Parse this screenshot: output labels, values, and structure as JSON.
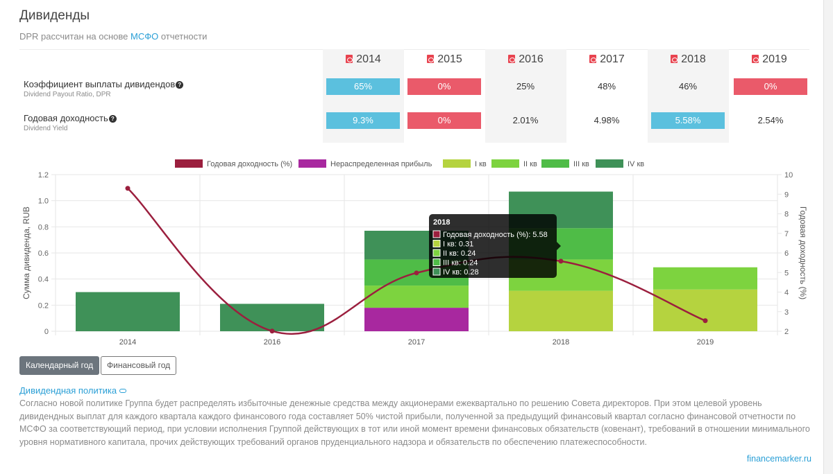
{
  "header": {
    "title": "Дивиденды",
    "subtitle_prefix": "DPR рассчитан на основе ",
    "subtitle_link": "МСФО",
    "subtitle_suffix": " отчетности"
  },
  "table": {
    "years": [
      "2014",
      "2015",
      "2016",
      "2017",
      "2018",
      "2019"
    ],
    "rows": [
      {
        "label": "Коэффициент выплаты дивидендов",
        "sublabel": "Dividend Payout Ratio, DPR",
        "cells": [
          {
            "value": "65%",
            "style": "blue"
          },
          {
            "value": "0%",
            "style": "red"
          },
          {
            "value": "25%",
            "style": "plain"
          },
          {
            "value": "48%",
            "style": "plain"
          },
          {
            "value": "46%",
            "style": "plain"
          },
          {
            "value": "0%",
            "style": "red"
          }
        ]
      },
      {
        "label": "Годовая доходность",
        "sublabel": "Dividend Yield",
        "cells": [
          {
            "value": "9.3%",
            "style": "blue"
          },
          {
            "value": "0%",
            "style": "red"
          },
          {
            "value": "2.01%",
            "style": "plain"
          },
          {
            "value": "4.98%",
            "style": "plain"
          },
          {
            "value": "5.58%",
            "style": "blue"
          },
          {
            "value": "2.54%",
            "style": "plain"
          }
        ]
      }
    ],
    "help_glyph": "?"
  },
  "colors": {
    "accent": "#2a9fd6",
    "highlight_blue": "#5bc0de",
    "highlight_red": "#ea5a6a",
    "line": "#9b1f3e",
    "retained": "#a8289f",
    "q1": "#b5d33f",
    "q2": "#7dd33f",
    "q3": "#4fbc47",
    "q4": "#3f9158"
  },
  "chart_data": {
    "type": "bar",
    "categories": [
      "2014",
      "2016",
      "2017",
      "2018",
      "2019"
    ],
    "series": [
      {
        "name": "Нераспределенная прибыль",
        "color": "#a8289f",
        "values": [
          0,
          0,
          0.18,
          0,
          0
        ]
      },
      {
        "name": "I кв",
        "color": "#b5d33f",
        "values": [
          0,
          0,
          0,
          0.31,
          0.32
        ]
      },
      {
        "name": "II кв",
        "color": "#7dd33f",
        "values": [
          0,
          0,
          0.17,
          0.24,
          0.17
        ]
      },
      {
        "name": "III кв",
        "color": "#4fbc47",
        "values": [
          0,
          0,
          0.2,
          0.24,
          0
        ]
      },
      {
        "name": "IV кв",
        "color": "#3f9158",
        "values": [
          0.3,
          0.21,
          0.22,
          0.28,
          0
        ]
      }
    ],
    "line_series": {
      "name": "Годовая доходность (%)",
      "color": "#9b1f3e",
      "values": [
        9.3,
        2.01,
        4.98,
        5.58,
        2.54
      ]
    },
    "legend": [
      "Годовая доходность (%)",
      "Нераспределенная прибыль",
      "I кв",
      "II кв",
      "III кв",
      "IV кв"
    ],
    "ylabel": "Сумма дивиденда, RUB",
    "y2label": "Годовая доходность (%)",
    "ylim": [
      0,
      1.2
    ],
    "yticks": [
      "0",
      "0.2",
      "0.4",
      "0.6",
      "0.8",
      "1.0",
      "1.2"
    ],
    "y2lim": [
      2,
      10
    ],
    "y2ticks": [
      "2",
      "3",
      "4",
      "5",
      "6",
      "7",
      "8",
      "9",
      "10"
    ],
    "tooltip": {
      "title": "2018",
      "lines": [
        {
          "text": "Годовая доходность (%): 5.58",
          "color": "#9b1f3e"
        },
        {
          "text": "I кв: 0.31",
          "color": "#b5d33f"
        },
        {
          "text": "II кв: 0.24",
          "color": "#7dd33f"
        },
        {
          "text": "III кв: 0.24",
          "color": "#4fbc47"
        },
        {
          "text": "IV кв: 0.28",
          "color": "#3f9158"
        }
      ]
    }
  },
  "buttons": {
    "calendar_year": "Календарный год",
    "fiscal_year": "Финансовый год"
  },
  "policy": {
    "title": "Дивидендная политика",
    "text": "Согласно новой политике Группа будет распределять избыточные денежные средства между акционерами ежеквартально по решению Совета директоров. При этом целевой уровень дивидендных выплат для каждого квартала каждого финансового года составляет 50% чистой прибыли, полученной за предыдущий финансовый квартал согласно финансовой отчетности по МСФО за соответствующий период, при условии исполнения Группой действующих в тот или иной момент времени финансовых обязательств (ковенант), требований в отношении минимального уровня нормативного капитала, прочих действующих требований органов пруденциального надзора и обязательств по обеспечению платежеспособности."
  },
  "footer": {
    "source_link": "financemarker.ru"
  }
}
